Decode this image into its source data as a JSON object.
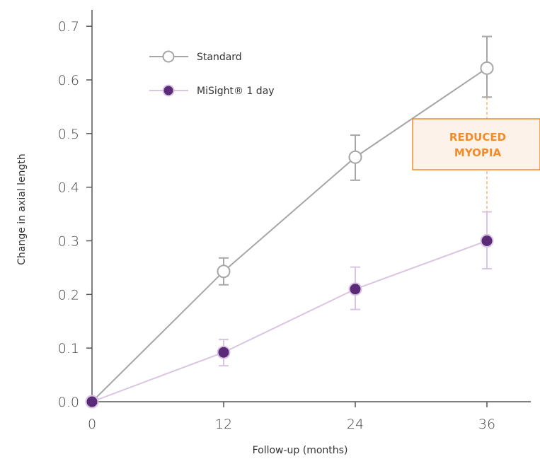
{
  "chart_data": {
    "type": "line",
    "title": "",
    "xlabel": "Follow-up (months)",
    "ylabel": "Change in axial length",
    "x": [
      0,
      12,
      24,
      36
    ],
    "x_ticks": [
      "0",
      "12",
      "24",
      "36"
    ],
    "y_ticks": [
      "0.0",
      "0.1",
      "0.2",
      "0.3",
      "0.4",
      "0.5",
      "0.6",
      "0.7"
    ],
    "xlim": [
      0,
      40
    ],
    "ylim": [
      0,
      0.72
    ],
    "legend_position": "top-left",
    "series": [
      {
        "name": "Standard",
        "values": [
          0.0,
          0.243,
          0.456,
          0.622
        ],
        "error_low": [
          0.0,
          0.218,
          0.413,
          0.568
        ],
        "error_high": [
          0.0,
          0.268,
          0.497,
          0.681
        ],
        "color": "#a6a6a6",
        "marker": "open-circle"
      },
      {
        "name": "MiSight® 1 day",
        "values": [
          0.0,
          0.092,
          0.21,
          0.3
        ],
        "error_low": [
          0.0,
          0.067,
          0.172,
          0.248
        ],
        "error_high": [
          0.0,
          0.116,
          0.251,
          0.354
        ],
        "color": "#d9c4e2",
        "marker_color": "#5b2a78",
        "marker": "filled-circle"
      }
    ],
    "annotation": {
      "lines": [
        "REDUCED",
        "MYOPIA"
      ],
      "at_x": 36,
      "color": "#f28c28",
      "fill": "#fdf2ea"
    }
  }
}
